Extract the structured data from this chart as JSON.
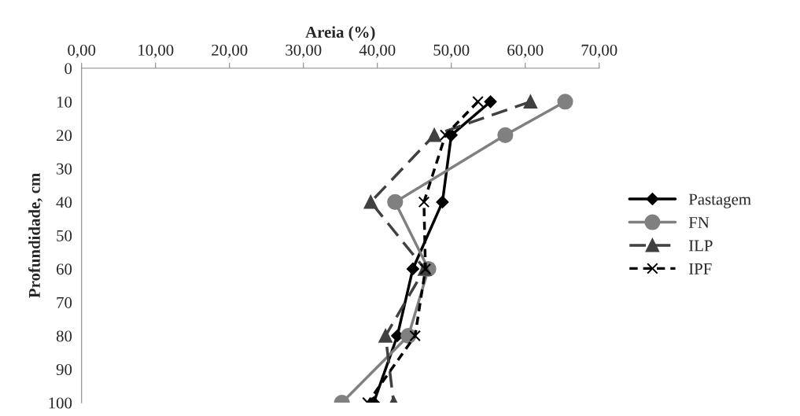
{
  "chart_data": {
    "type": "line",
    "orientation": "horizontal",
    "xlabel": "Areia (%)",
    "ylabel": "Profundidade, cm",
    "x": [
      10,
      20,
      40,
      60,
      80,
      100
    ],
    "series": [
      {
        "name": "Pastagem",
        "color": "#000000",
        "marker": "diamond",
        "line_style": "solid",
        "values": [
          55.3,
          50.0,
          48.8,
          44.8,
          42.7,
          39.5
        ]
      },
      {
        "name": "FN",
        "color": "#808080",
        "marker": "circle",
        "line_style": "solid",
        "values": [
          65.4,
          57.3,
          42.4,
          46.9,
          44.2,
          35.2
        ]
      },
      {
        "name": "ILP",
        "color": "#404040",
        "marker": "triangle",
        "line_style": "dashed",
        "values": [
          60.7,
          47.7,
          39.1,
          46.4,
          41.1,
          42.2
        ]
      },
      {
        "name": "IPF",
        "color": "#000000",
        "marker": "cross",
        "line_style": "dotted",
        "values": [
          53.6,
          49.2,
          46.3,
          46.5,
          45.1,
          38.7
        ]
      }
    ],
    "xlim": [
      0,
      70
    ],
    "xticks": [
      {
        "value": 0,
        "label": "0,00"
      },
      {
        "value": 10,
        "label": "10,00"
      },
      {
        "value": 20,
        "label": "20,00"
      },
      {
        "value": 30,
        "label": "30,00"
      },
      {
        "value": 40,
        "label": "40,00"
      },
      {
        "value": 50,
        "label": "50,00"
      },
      {
        "value": 60,
        "label": "60,00"
      },
      {
        "value": 70,
        "label": "70,00"
      }
    ],
    "ylim": [
      100,
      0
    ],
    "yticks": [
      0,
      10,
      20,
      30,
      40,
      50,
      60,
      70,
      80,
      90,
      100
    ],
    "grid": false,
    "legend": "right"
  }
}
